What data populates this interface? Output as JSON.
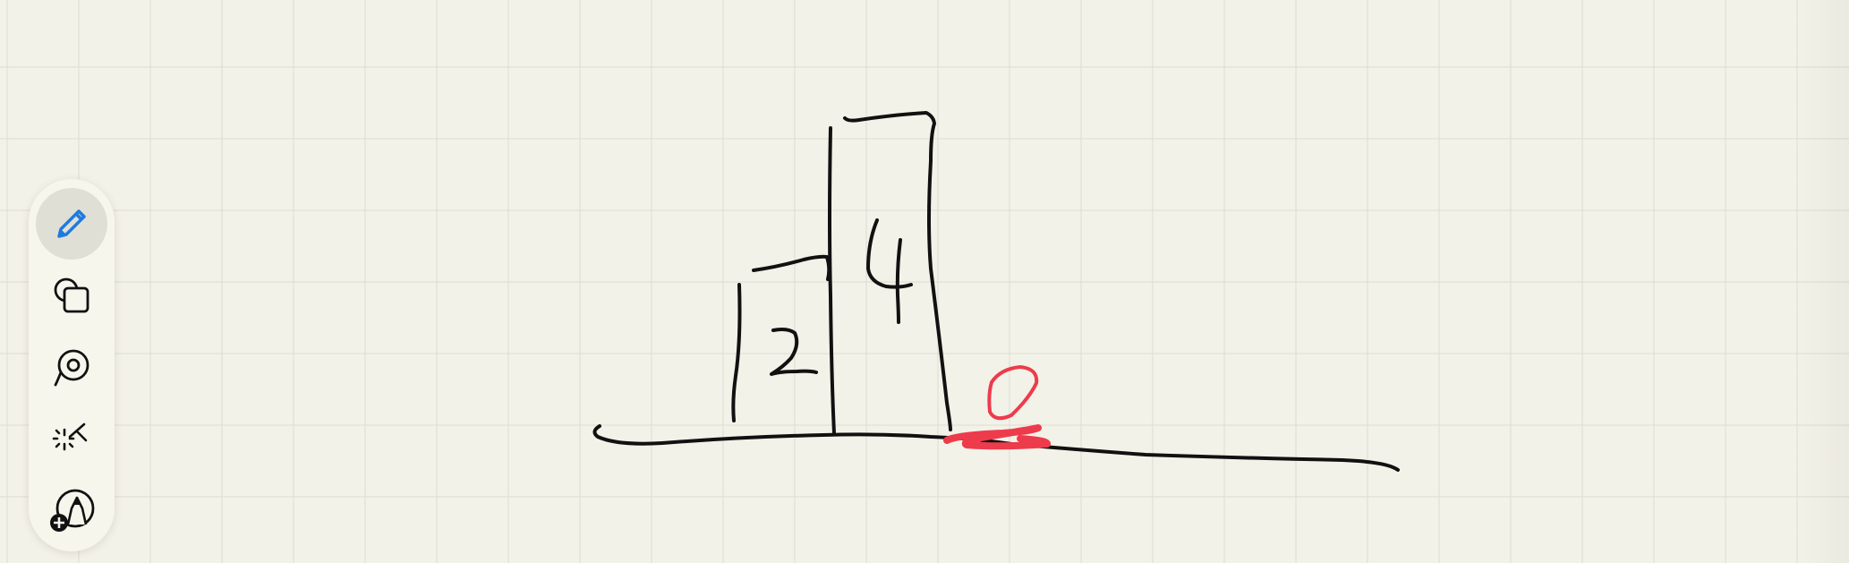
{
  "app": {
    "background_color": "#f3f2e8",
    "grid_color": "#dcdcd2"
  },
  "drawing": {
    "ink_color": "#111111",
    "highlight_color": "#ee3b4c",
    "labels": [
      "2",
      "4",
      "0"
    ]
  },
  "toolbar": {
    "tools": [
      {
        "name": "pencil",
        "icon": "pencil-icon",
        "active": true,
        "accent": "#1f7ae0"
      },
      {
        "name": "shapes",
        "icon": "shapes-icon",
        "active": false
      },
      {
        "name": "lasso",
        "icon": "lasso-icon",
        "active": false
      },
      {
        "name": "magic",
        "icon": "magic-wand-icon",
        "active": false
      },
      {
        "name": "add-pen",
        "icon": "add-pen-icon",
        "active": false
      }
    ]
  }
}
